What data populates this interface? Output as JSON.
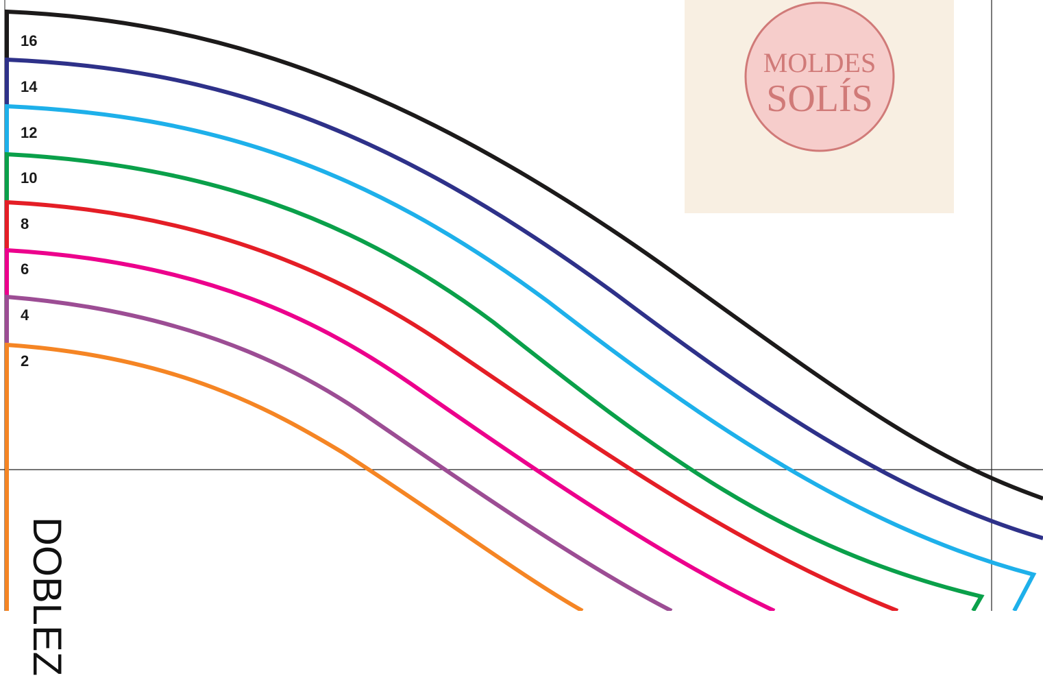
{
  "sizes": [
    {
      "label": "16",
      "color": "#1c1a1a"
    },
    {
      "label": "14",
      "color": "#2e3189"
    },
    {
      "label": "12",
      "color": "#1eb0ea"
    },
    {
      "label": "10",
      "color": "#0aa04a"
    },
    {
      "label": "8",
      "color": "#e41e26"
    },
    {
      "label": "6",
      "color": "#ec008c"
    },
    {
      "label": "4",
      "color": "#9c4d94"
    },
    {
      "label": "2",
      "color": "#f58524"
    }
  ],
  "logo": {
    "line1": "MOLDES",
    "line2": "SOLÍS",
    "panel_color": "#f8efe2",
    "seal_fill": "#f6cdcb",
    "seal_stroke": "#d07a78"
  },
  "fold_text": "DOBLEZ"
}
